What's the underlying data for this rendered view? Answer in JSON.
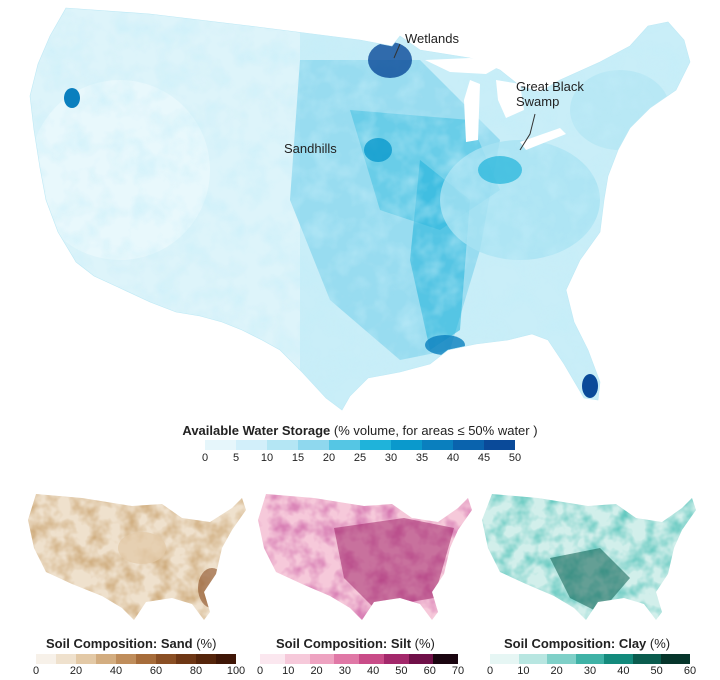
{
  "main_map": {
    "callouts": {
      "wetlands": "Wetlands",
      "great_black_swamp_line1": "Great Black",
      "great_black_swamp_line2": "Swamp",
      "sandhills": "Sandhills"
    },
    "legend": {
      "title_bold": "Available Water Storage",
      "title_rest": " (% volume, for areas ≤ 50% water )",
      "ticks": [
        "0",
        "5",
        "10",
        "15",
        "20",
        "25",
        "30",
        "35",
        "40",
        "45",
        "50"
      ],
      "colors": [
        "#e6f6fb",
        "#d2effa",
        "#b4e6f4",
        "#8fd8ee",
        "#55c6e4",
        "#1fb3da",
        "#0a99cc",
        "#0a7fbe",
        "#0a63ad",
        "#0a4a99"
      ]
    }
  },
  "small_maps": [
    {
      "title_bold": "Soil Composition: Sand",
      "title_rest": " (%)",
      "ticks": [
        "0",
        "20",
        "40",
        "60",
        "80",
        "100"
      ],
      "colors": [
        "#f7f1e9",
        "#efe1cd",
        "#e3c9a6",
        "#d3ad80",
        "#bf8d5b",
        "#a66c3a",
        "#8a4f24",
        "#6e3715",
        "#55250b",
        "#3f1606"
      ]
    },
    {
      "title_bold": "Soil Composition: Silt",
      "title_rest": " (%)",
      "ticks": [
        "0",
        "10",
        "20",
        "30",
        "40",
        "50",
        "60",
        "70"
      ],
      "colors": [
        "#fbe7ef",
        "#f6c9da",
        "#eea3c1",
        "#e078a6",
        "#c94c88",
        "#a3286b",
        "#6f1048",
        "#1a0510"
      ]
    },
    {
      "title_bold": "Soil Composition: Clay",
      "title_rest": " (%)",
      "ticks": [
        "0",
        "10",
        "20",
        "30",
        "40",
        "50",
        "60"
      ],
      "colors": [
        "#e6f6f4",
        "#b8e6e1",
        "#7fd0c8",
        "#3fb2a6",
        "#138a7c",
        "#0a5c4e",
        "#06352b"
      ]
    }
  ]
}
